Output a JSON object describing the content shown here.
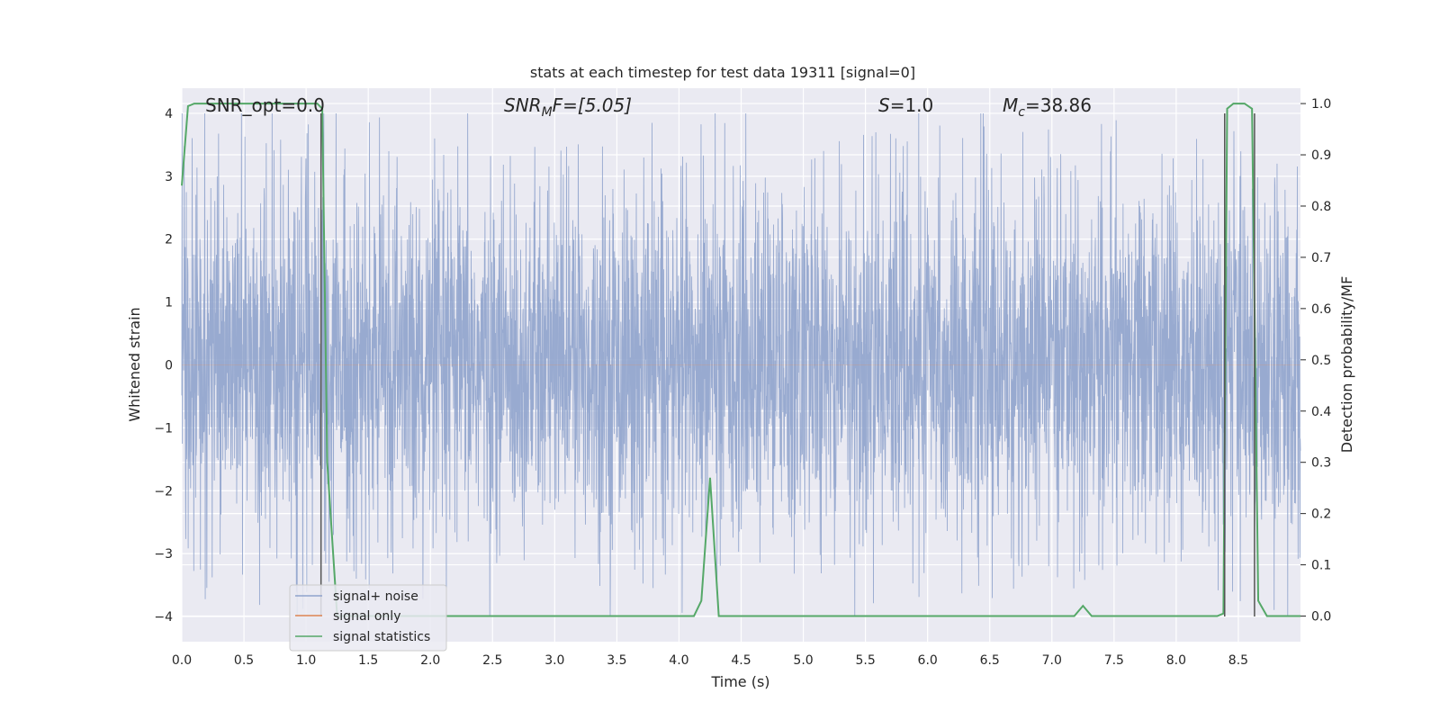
{
  "chart_data": {
    "type": "line",
    "title": "stats at each timestep for test data 19311 [signal=0]",
    "xlabel": "Time (s)",
    "ylabel_left": "Whitened strain",
    "ylabel_right": "Detection probability/MF",
    "xlim": [
      0.0,
      9.0
    ],
    "ylim_left": [
      -4.4,
      4.4
    ],
    "ylim_right": [
      -0.05,
      1.03
    ],
    "grid": true,
    "x_ticks": [
      "0.0",
      "0.5",
      "1.0",
      "1.5",
      "2.0",
      "2.5",
      "3.0",
      "3.5",
      "4.0",
      "4.5",
      "5.0",
      "5.5",
      "6.0",
      "6.5",
      "7.0",
      "7.5",
      "8.0",
      "8.5"
    ],
    "x_tick_values": [
      0.0,
      0.5,
      1.0,
      1.5,
      2.0,
      2.5,
      3.0,
      3.5,
      4.0,
      4.5,
      5.0,
      5.5,
      6.0,
      6.5,
      7.0,
      7.5,
      8.0,
      8.5
    ],
    "y_ticks_left": [
      "4",
      "3",
      "2",
      "1",
      "0",
      "−1",
      "−2",
      "−3",
      "−4"
    ],
    "y_tick_values_left": [
      4,
      3,
      2,
      1,
      0,
      -1,
      -2,
      -3,
      -4
    ],
    "y_ticks_right": [
      "1.0",
      "0.9",
      "0.8",
      "0.7",
      "0.6",
      "0.5",
      "0.4",
      "0.3",
      "0.2",
      "0.1",
      "0.0"
    ],
    "y_tick_values_right": [
      1.0,
      0.9,
      0.8,
      0.7,
      0.6,
      0.5,
      0.4,
      0.3,
      0.2,
      0.1,
      0.0
    ],
    "annotations": {
      "snr_opt": "SNR_opt=0.0",
      "snr_mf_base": "SNR",
      "snr_mf_sub": "M",
      "snr_mf_rest": "F=[5.05]",
      "s_label": "S",
      "s_value": "=1.0",
      "mc_base": "M",
      "mc_sub": "c",
      "mc_value": "=38.86"
    },
    "legend": {
      "placement": "lower-left",
      "entries": [
        "signal+ noise",
        "signal only",
        "signal statistics"
      ]
    },
    "colors": {
      "noise": "#8fa3cc",
      "signal": "#dd8452",
      "stats": "#55a868",
      "vline": "#555555",
      "background": "#eaeaf2",
      "grid": "#ffffff"
    },
    "noise_envelope": {
      "typical_amplitude": 1.7,
      "max_amplitude": 4.0,
      "min_value": -4.0
    },
    "vertical_lines_x": [
      1.12,
      8.39,
      8.63
    ],
    "series": [
      {
        "name": "signal statistics",
        "axis": "right",
        "x": [
          0.0,
          0.05,
          0.1,
          0.2,
          0.5,
          1.0,
          1.09,
          1.13,
          1.17,
          1.25,
          2.0,
          3.0,
          4.0,
          4.12,
          4.18,
          4.25,
          4.32,
          4.4,
          5.0,
          6.0,
          6.2,
          7.0,
          7.18,
          7.25,
          7.32,
          8.0,
          8.33,
          8.38,
          8.41,
          8.46,
          8.55,
          8.61,
          8.66,
          8.73,
          8.82,
          9.0
        ],
        "values": [
          0.84,
          0.995,
          1.0,
          1.0,
          1.0,
          1.0,
          1.0,
          0.99,
          0.3,
          0.0,
          0.0,
          0.0,
          0.0,
          0.0,
          0.03,
          0.27,
          0.0,
          0.0,
          0.0,
          0.0,
          0.0,
          0.0,
          0.0,
          0.02,
          0.0,
          0.0,
          0.0,
          0.005,
          0.99,
          1.0,
          1.0,
          0.99,
          0.03,
          0.0,
          0.0,
          0.0
        ]
      },
      {
        "name": "signal only",
        "axis": "left",
        "x": [
          0.0,
          9.0
        ],
        "values": [
          0.0,
          0.0
        ]
      }
    ]
  }
}
